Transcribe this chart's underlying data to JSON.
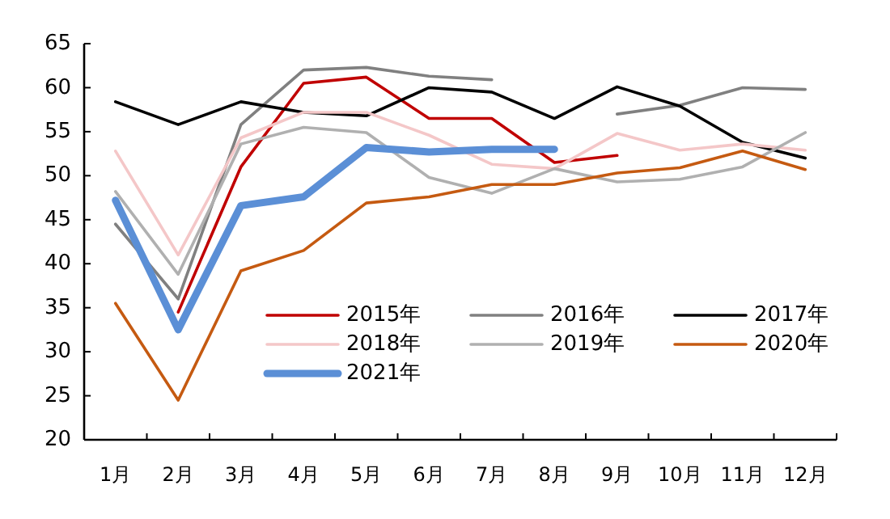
{
  "chart_data": {
    "type": "line",
    "categories": [
      "1月",
      "2月",
      "3月",
      "4月",
      "5月",
      "6月",
      "7月",
      "8月",
      "9月",
      "10月",
      "11月",
      "12月"
    ],
    "series": [
      {
        "name": "2015年",
        "color": "#c00000",
        "values": [
          null,
          34.5,
          51,
          60.5,
          61.2,
          56.5,
          56.5,
          51.5,
          52.3,
          null,
          null,
          null
        ]
      },
      {
        "name": "2016年",
        "color": "#808080",
        "values": [
          44.5,
          36,
          55.8,
          62,
          62.3,
          61.3,
          60.9,
          null,
          57,
          58,
          60,
          59.8
        ]
      },
      {
        "name": "2017年",
        "color": "#000000",
        "values": [
          58.4,
          55.8,
          58.4,
          57.2,
          56.8,
          60,
          59.5,
          56.5,
          60.1,
          57.9,
          53.8,
          52
        ]
      },
      {
        "name": "2018年",
        "color": "#f4c7c8",
        "values": [
          52.8,
          41,
          54.3,
          57.2,
          57.2,
          54.6,
          51.3,
          50.8,
          54.8,
          52.9,
          53.6,
          52.9
        ]
      },
      {
        "name": "2019年",
        "color": "#b0b0b0",
        "values": [
          48.2,
          38.8,
          53.6,
          55.5,
          54.9,
          49.8,
          48,
          50.8,
          49.3,
          49.6,
          51,
          54.9
        ]
      },
      {
        "name": "2020年",
        "color": "#c55a11",
        "values": [
          35.5,
          24.5,
          39.2,
          41.5,
          46.9,
          47.6,
          49,
          49,
          50.3,
          50.9,
          52.8,
          50.7
        ]
      },
      {
        "name": "2021年",
        "color": "#5b8fd6",
        "values": [
          47.2,
          32.5,
          46.6,
          47.6,
          53.2,
          52.7,
          53,
          53,
          null,
          null,
          null,
          null
        ]
      }
    ],
    "ylim": [
      20,
      65
    ],
    "yticks": [
      20,
      25,
      30,
      35,
      40,
      45,
      50,
      55,
      60,
      65
    ],
    "grid": false,
    "legend": "bottom",
    "marker": "none",
    "line_style": "solid"
  }
}
